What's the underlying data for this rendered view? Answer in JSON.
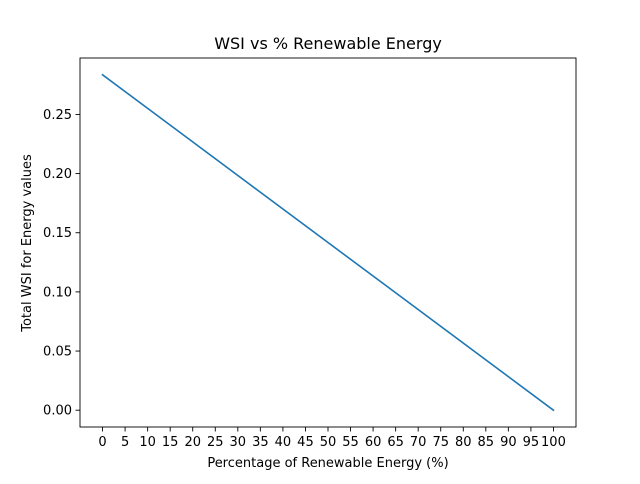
{
  "chart_data": {
    "type": "line",
    "title": "WSI vs % Renewable Energy",
    "xlabel": "Percentage of Renewable Energy (%)",
    "ylabel": "Total WSI for Energy values",
    "xlim": [
      -5,
      105
    ],
    "ylim": [
      -0.0142,
      0.2977
    ],
    "xticks": [
      0,
      5,
      10,
      15,
      20,
      25,
      30,
      35,
      40,
      45,
      50,
      55,
      60,
      65,
      70,
      75,
      80,
      85,
      90,
      95,
      100
    ],
    "xtick_labels": [
      "0",
      "5",
      "10",
      "15",
      "20",
      "25",
      "30",
      "35",
      "40",
      "45",
      "50",
      "55",
      "60",
      "65",
      "70",
      "75",
      "80",
      "85",
      "90",
      "95",
      "100"
    ],
    "yticks": [
      0.0,
      0.05,
      0.1,
      0.15,
      0.2,
      0.25
    ],
    "ytick_labels": [
      "0.00",
      "0.05",
      "0.10",
      "0.15",
      "0.20",
      "0.25"
    ],
    "grid": false,
    "legend": false,
    "series": [
      {
        "color": "#1f77b4",
        "x": [
          0,
          100
        ],
        "y": [
          0.2835,
          0.0
        ]
      }
    ]
  }
}
